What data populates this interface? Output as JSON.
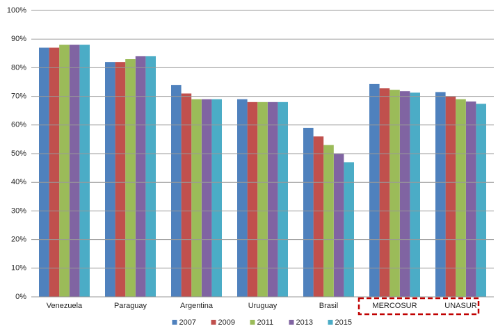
{
  "chart_data": {
    "type": "bar",
    "categories": [
      "Venezuela",
      "Paraguay",
      "Argentina",
      "Uruguay",
      "Brasil",
      "MERCOSUR",
      "UNASUR"
    ],
    "series": [
      {
        "name": "2007",
        "color": "#4f81bd",
        "values": [
          87,
          82,
          74,
          69,
          59,
          74.3,
          71.5
        ]
      },
      {
        "name": "2009",
        "color": "#c0504d",
        "values": [
          87,
          82,
          71,
          68,
          56,
          72.8,
          70
        ]
      },
      {
        "name": "2011",
        "color": "#9bbb59",
        "values": [
          88,
          83,
          69,
          68,
          53,
          72.3,
          69
        ]
      },
      {
        "name": "2013",
        "color": "#8064a2",
        "values": [
          88,
          84,
          69,
          68,
          50,
          71.8,
          68.2
        ]
      },
      {
        "name": "2015",
        "color": "#4bacc6",
        "values": [
          88,
          84,
          69,
          68,
          47,
          71.3,
          67.4
        ]
      }
    ],
    "ylim": [
      0,
      100
    ],
    "yticks": [
      {
        "value": 0,
        "label": "0%"
      },
      {
        "value": 10,
        "label": "10%"
      },
      {
        "value": 20,
        "label": "20%"
      },
      {
        "value": 30,
        "label": "30%"
      },
      {
        "value": 40,
        "label": "40%"
      },
      {
        "value": 50,
        "label": "50%"
      },
      {
        "value": 60,
        "label": "60%"
      },
      {
        "value": 70,
        "label": "70%"
      },
      {
        "value": 80,
        "label": "80%"
      },
      {
        "value": 90,
        "label": "90%"
      },
      {
        "value": 100,
        "label": "100%"
      }
    ],
    "grid": true,
    "legend": "bottom"
  }
}
